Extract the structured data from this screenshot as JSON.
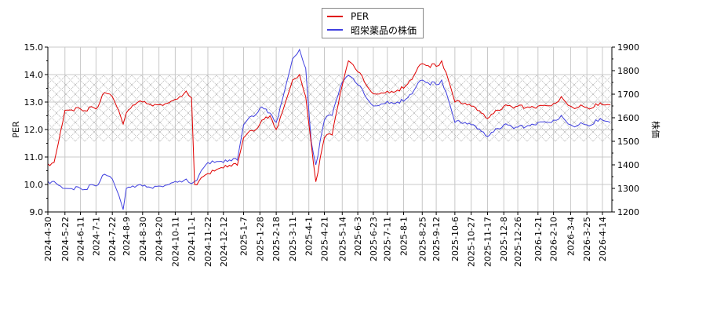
{
  "chart_data": {
    "type": "line",
    "title": "",
    "legend": {
      "position": "top-center",
      "entries": [
        {
          "label": "PER",
          "color": "#e00000"
        },
        {
          "label": "昭栄薬品の株価",
          "color": "#4040e0"
        }
      ]
    },
    "left_axis": {
      "label": "PER",
      "ylim": [
        9.0,
        15.0
      ],
      "ticks": [
        "9.0",
        "10.0",
        "11.0",
        "12.0",
        "13.0",
        "14.0",
        "15.0"
      ]
    },
    "right_axis": {
      "label": "株価",
      "ylim": [
        1200,
        1900
      ],
      "ticks": [
        "1200",
        "1300",
        "1400",
        "1500",
        "1600",
        "1700",
        "1800",
        "1900"
      ]
    },
    "shaded_band": {
      "per_range": [
        11.57,
        13.97
      ],
      "style": "cross-hatch"
    },
    "grid": true,
    "x_tick_labels": [
      "2024-4-30",
      "2024-5-22",
      "2024-6-11",
      "2024-7-1",
      "2024-7-22",
      "2024-8-9",
      "2024-8-30",
      "2024-9-20",
      "2024-10-11",
      "2024-11-1",
      "2024-11-22",
      "2024-12-12",
      "2025-1-7",
      "2025-1-28",
      "2025-2-18",
      "2025-3-11",
      "2025-4-1",
      "2025-4-21",
      "2025-5-14",
      "2025-6-3",
      "2025-6-23",
      "2025-7-11",
      "2025-8-1",
      "2025-8-25",
      "2025-9-12",
      "2025-10-6",
      "2025-10-27",
      "2025-11-17",
      "2025-12-8",
      "2025-12-26",
      "2026-1-21",
      "2026-2-10",
      "2026-3-4",
      "2026-3-25",
      "2026-4-14"
    ],
    "series": [
      {
        "name": "PER",
        "axis": "left",
        "color": "#e00000",
        "x": [
          "2024-4-30",
          "2024-5-8",
          "2024-5-22",
          "2024-6-11",
          "2024-7-1",
          "2024-7-12",
          "2024-7-22",
          "2024-8-5",
          "2024-8-9",
          "2024-8-20",
          "2024-8-30",
          "2024-9-20",
          "2024-10-11",
          "2024-10-25",
          "2024-11-1",
          "2024-11-5",
          "2024-11-22",
          "2024-12-12",
          "2024-12-30",
          "2025-1-7",
          "2025-1-28",
          "2025-2-10",
          "2025-2-18",
          "2025-3-11",
          "2025-3-20",
          "2025-3-28",
          "2025-4-4",
          "2025-4-10",
          "2025-4-21",
          "2025-5-1",
          "2025-5-14",
          "2025-5-22",
          "2025-6-3",
          "2025-6-23",
          "2025-7-11",
          "2025-8-1",
          "2025-8-25",
          "2025-9-12",
          "2025-9-19",
          "2025-10-6",
          "2025-10-27",
          "2025-11-17",
          "2025-12-8",
          "2025-12-26",
          "2026-1-21",
          "2026-2-10",
          "2026-2-20",
          "2026-3-4",
          "2026-3-25",
          "2026-4-14",
          "2026-4-24"
        ],
        "values": [
          10.75,
          10.8,
          12.7,
          12.75,
          12.75,
          13.35,
          13.2,
          12.2,
          12.6,
          12.9,
          13.0,
          12.9,
          13.1,
          13.4,
          13.15,
          10.0,
          10.4,
          10.6,
          10.7,
          11.7,
          12.2,
          12.5,
          12.0,
          13.8,
          14.0,
          13.2,
          11.5,
          10.1,
          11.7,
          11.8,
          13.6,
          14.5,
          14.1,
          13.3,
          13.4,
          13.5,
          14.4,
          14.3,
          14.5,
          13.0,
          12.85,
          12.4,
          12.85,
          12.85,
          12.85,
          12.95,
          13.2,
          12.85,
          12.8,
          12.9,
          12.9
        ]
      },
      {
        "name": "昭栄薬品の株価",
        "axis": "right",
        "color": "#4040e0",
        "x": [
          "2024-4-30",
          "2024-5-8",
          "2024-5-22",
          "2024-6-11",
          "2024-7-1",
          "2024-7-12",
          "2024-7-22",
          "2024-8-5",
          "2024-8-9",
          "2024-8-20",
          "2024-8-30",
          "2024-9-20",
          "2024-10-11",
          "2024-10-25",
          "2024-11-1",
          "2024-11-5",
          "2024-11-22",
          "2024-12-12",
          "2024-12-30",
          "2025-1-7",
          "2025-1-28",
          "2025-2-10",
          "2025-2-18",
          "2025-3-11",
          "2025-3-20",
          "2025-3-28",
          "2025-4-4",
          "2025-4-10",
          "2025-4-21",
          "2025-5-1",
          "2025-5-14",
          "2025-5-22",
          "2025-6-3",
          "2025-6-23",
          "2025-7-11",
          "2025-8-1",
          "2025-8-25",
          "2025-9-12",
          "2025-9-19",
          "2025-10-6",
          "2025-10-27",
          "2025-11-17",
          "2025-12-8",
          "2025-12-26",
          "2026-1-21",
          "2026-2-10",
          "2026-2-20",
          "2026-3-4",
          "2026-3-25",
          "2026-4-14",
          "2026-4-24"
        ],
        "values": [
          1330,
          1330,
          1300,
          1300,
          1310,
          1360,
          1340,
          1210,
          1300,
          1305,
          1310,
          1310,
          1330,
          1340,
          1320,
          1330,
          1410,
          1410,
          1420,
          1570,
          1640,
          1620,
          1580,
          1850,
          1890,
          1810,
          1500,
          1400,
          1590,
          1610,
          1750,
          1780,
          1740,
          1650,
          1670,
          1670,
          1760,
          1740,
          1760,
          1580,
          1570,
          1520,
          1570,
          1560,
          1580,
          1590,
          1610,
          1570,
          1570,
          1590,
          1580
        ]
      }
    ]
  }
}
